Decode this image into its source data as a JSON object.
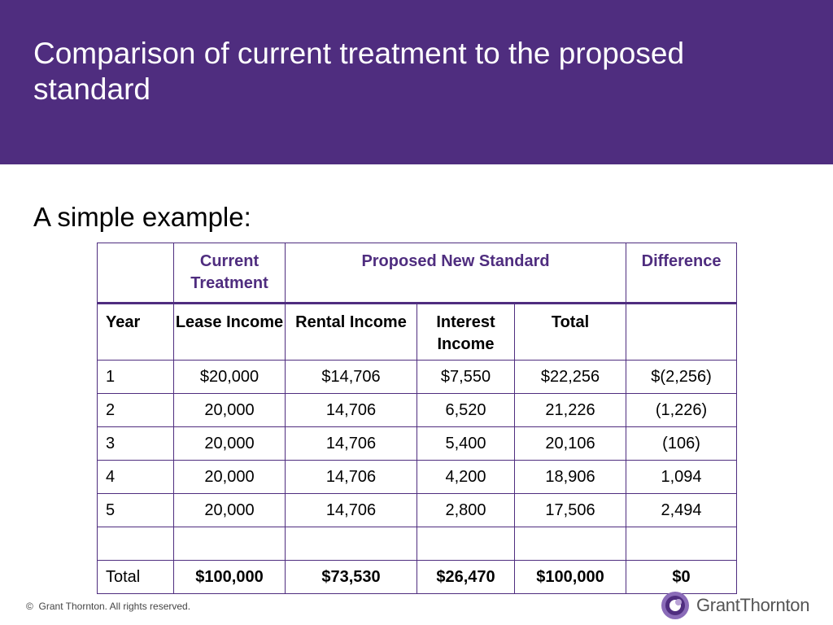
{
  "slide": {
    "title": "Comparison of current treatment to the proposed standard",
    "subtitle": "A simple example:"
  },
  "table": {
    "group_headers": {
      "current": "Current Treatment",
      "proposed": "Proposed New Standard",
      "difference": "Difference"
    },
    "column_headers": {
      "year": "Year",
      "lease_income": "Lease Income",
      "rental_income": "Rental Income",
      "interest_income": "Interest Income",
      "total": "Total"
    },
    "rows": [
      {
        "year": "1",
        "lease": "$20,000",
        "rental": "$14,706",
        "interest": "$7,550",
        "total": "$22,256",
        "diff": "$(2,256)"
      },
      {
        "year": "2",
        "lease": "20,000",
        "rental": "14,706",
        "interest": "6,520",
        "total": "21,226",
        "diff": "(1,226)"
      },
      {
        "year": "3",
        "lease": "20,000",
        "rental": "14,706",
        "interest": "5,400",
        "total": "20,106",
        "diff": "(106)"
      },
      {
        "year": "4",
        "lease": "20,000",
        "rental": "14,706",
        "interest": "4,200",
        "total": "18,906",
        "diff": "1,094"
      },
      {
        "year": "5",
        "lease": "20,000",
        "rental": "14,706",
        "interest": "2,800",
        "total": "17,506",
        "diff": "2,494"
      }
    ],
    "totals": {
      "label": "Total",
      "lease": "$100,000",
      "rental": "$73,530",
      "interest": "$26,470",
      "total": "$100,000",
      "diff": "$0"
    }
  },
  "footer": {
    "copyright_symbol": "©",
    "copyright": "Grant Thornton. All rights reserved."
  },
  "logo": {
    "text": "GrantThornton",
    "icon": "grant-thornton-logo-icon"
  },
  "colors": {
    "brand_purple": "#4f2d7f",
    "text": "#000000",
    "background": "#ffffff"
  }
}
